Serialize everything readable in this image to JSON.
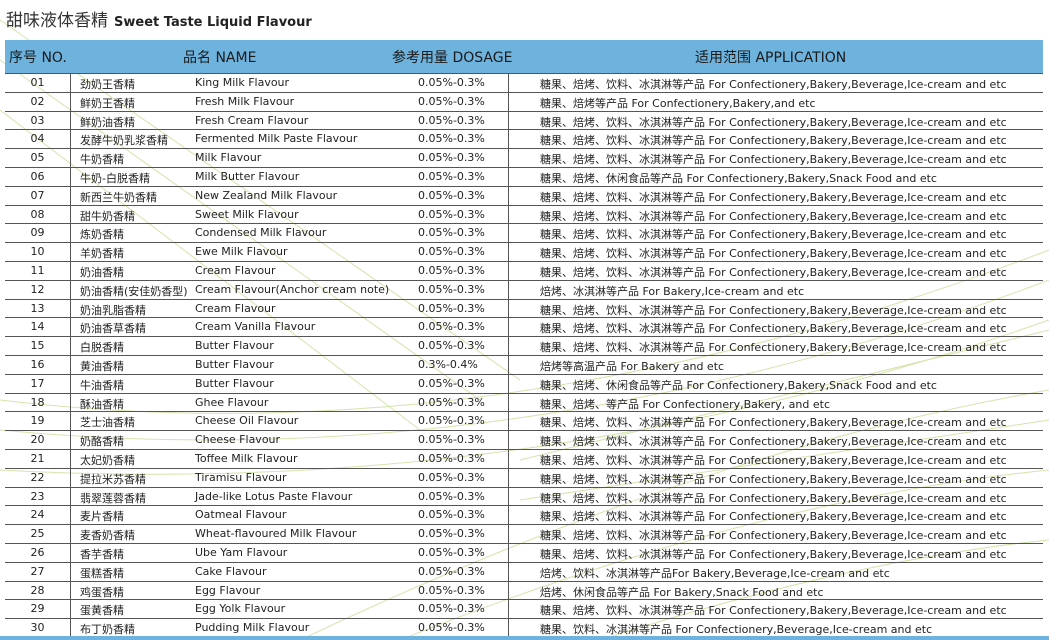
{
  "title": {
    "cn": "甜味液体香精",
    "en": "Sweet Taste Liquid Flavour"
  },
  "colors": {
    "header_bg": "#6db3de",
    "accent_lines": "#b9d77a"
  },
  "headers": {
    "no": "序号 NO.",
    "name": "品名 NAME",
    "dosage": "参考用量 DOSAGE",
    "application": "适用范围 APPLICATION"
  },
  "rows": [
    {
      "no": "01",
      "cn": "劲奶王香精",
      "en": "King Milk Flavour",
      "dosage": "0.05%-0.3%",
      "app": "糖果、焙烤、饮料、冰淇淋等产品  For Confectionery,Bakery,Beverage,Ice-cream and etc"
    },
    {
      "no": "02",
      "cn": "鲜奶王香精",
      "en": "Fresh Milk Flavour",
      "dosage": "0.05%-0.3%",
      "app": "糖果、焙烤等产品  For Confectionery,Bakery,and etc"
    },
    {
      "no": "03",
      "cn": "鲜奶油香精",
      "en": "Fresh Cream Flavour",
      "dosage": "0.05%-0.3%",
      "app": "糖果、焙烤、饮料、冰淇淋等产品  For Confectionery,Bakery,Beverage,Ice-cream and etc"
    },
    {
      "no": "04",
      "cn": "发酵牛奶乳浆香精",
      "en": "Fermented Milk Paste Flavour",
      "dosage": "0.05%-0.3%",
      "app": "糖果、焙烤、饮料、冰淇淋等产品  For Confectionery,Bakery,Beverage,Ice-cream and etc"
    },
    {
      "no": "05",
      "cn": "牛奶香精",
      "en": "Milk Flavour",
      "dosage": "0.05%-0.3%",
      "app": "糖果、焙烤、饮料、冰淇淋等产品  For Confectionery,Bakery,Beverage,Ice-cream and etc"
    },
    {
      "no": "06",
      "cn": "牛奶-白脱香精",
      "en": "Milk Butter Flavour",
      "dosage": "0.05%-0.3%",
      "app": "糖果、焙烤、休闲食品等产品  For Confectionery,Bakery,Snack Food and etc"
    },
    {
      "no": "07",
      "cn": "新西兰牛奶香精",
      "en": "New Zealand Milk Flavour",
      "dosage": "0.05%-0.3%",
      "app": "糖果、焙烤、饮料、冰淇淋等产品  For Confectionery,Bakery,Beverage,Ice-cream and etc"
    },
    {
      "no": "08",
      "cn": "甜牛奶香精",
      "en": "Sweet Milk Flavour",
      "dosage": "0.05%-0.3%",
      "app": "糖果、焙烤、饮料、冰淇淋等产品  For Confectionery,Bakery,Beverage,Ice-cream and etc"
    },
    {
      "no": "09",
      "cn": "炼奶香精",
      "en": "Condensed Milk Flavour",
      "dosage": "0.05%-0.3%",
      "app": "糖果、焙烤、饮料、冰淇淋等产品  For Confectionery,Bakery,Beverage,Ice-cream and etc"
    },
    {
      "no": "10",
      "cn": "羊奶香精",
      "en": "Ewe Milk Flavour",
      "dosage": "0.05%-0.3%",
      "app": "糖果、焙烤、饮料、冰淇淋等产品  For Confectionery,Bakery,Beverage,Ice-cream and etc"
    },
    {
      "no": "11",
      "cn": "奶油香精",
      "en": "Cream Flavour",
      "dosage": "0.05%-0.3%",
      "app": "糖果、焙烤、饮料、冰淇淋等产品  For Confectionery,Bakery,Beverage,Ice-cream and etc"
    },
    {
      "no": "12",
      "cn": "奶油香精(安佳奶香型)",
      "en": "Cream Flavour(Anchor cream note)",
      "dosage": "0.05%-0.3%",
      "app": "焙烤、冰淇淋等产品  For Bakery,Ice-cream and etc"
    },
    {
      "no": "13",
      "cn": "奶油乳脂香精",
      "en": "Cream Flavour",
      "dosage": "0.05%-0.3%",
      "app": "糖果、焙烤、饮料、冰淇淋等产品  For Confectionery,Bakery,Beverage,Ice-cream and etc"
    },
    {
      "no": "14",
      "cn": "奶油香草香精",
      "en": "Cream Vanilla Flavour",
      "dosage": "0.05%-0.3%",
      "app": "糖果、焙烤、饮料、冰淇淋等产品  For Confectionery,Bakery,Beverage,Ice-cream and etc"
    },
    {
      "no": "15",
      "cn": "白脱香精",
      "en": "Butter Flavour",
      "dosage": "0.05%-0.3%",
      "app": "糖果、焙烤、饮料、冰淇淋等产品  For Confectionery,Bakery,Beverage,Ice-cream and etc"
    },
    {
      "no": "16",
      "cn": "黄油香精",
      "en": "Butter Flavour",
      "dosage": "0.3%-0.4%",
      "app": "焙烤等高温产品  For Bakery and etc"
    },
    {
      "no": "17",
      "cn": "牛油香精",
      "en": "Butter Flavour",
      "dosage": "0.05%-0.3%",
      "app": "糖果、焙烤、休闲食品等产品  For Confectionery,Bakery,Snack Food and etc"
    },
    {
      "no": "18",
      "cn": "酥油香精",
      "en": "Ghee Flavour",
      "dosage": "0.05%-0.3%",
      "app": "糖果、焙烤、等产品  For Confectionery,Bakery, and etc"
    },
    {
      "no": "19",
      "cn": "芝士油香精",
      "en": "Cheese Oil Flavour",
      "dosage": "0.05%-0.3%",
      "app": "糖果、焙烤、饮料、冰淇淋等产品  For Confectionery,Bakery,Beverage,Ice-cream and etc"
    },
    {
      "no": "20",
      "cn": "奶酪香精",
      "en": "Cheese Flavour",
      "dosage": "0.05%-0.3%",
      "app": "糖果、焙烤、饮料、冰淇淋等产品  For Confectionery,Bakery,Beverage,Ice-cream and etc"
    },
    {
      "no": "21",
      "cn": "太妃奶香精",
      "en": "Toffee Milk Flavour",
      "dosage": "0.05%-0.3%",
      "app": "糖果、焙烤、饮料、冰淇淋等产品  For Confectionery,Bakery,Beverage,Ice-cream and etc"
    },
    {
      "no": "22",
      "cn": "提拉米苏香精",
      "en": "Tiramisu Flavour",
      "dosage": "0.05%-0.3%",
      "app": "糖果、焙烤、饮料、冰淇淋等产品  For Confectionery,Bakery,Beverage,Ice-cream and etc"
    },
    {
      "no": "23",
      "cn": "翡翠莲蓉香精",
      "en": "Jade-like Lotus Paste Flavour",
      "dosage": "0.05%-0.3%",
      "app": "糖果、焙烤、饮料、冰淇淋等产品  For Confectionery,Bakery,Beverage,Ice-cream and etc"
    },
    {
      "no": "24",
      "cn": "麦片香精",
      "en": "Oatmeal Flavour",
      "dosage": "0.05%-0.3%",
      "app": "糖果、焙烤、饮料、冰淇淋等产品  For Confectionery,Bakery,Beverage,Ice-cream and etc"
    },
    {
      "no": "25",
      "cn": "麦香奶香精",
      "en": "Wheat-flavoured Milk Flavour",
      "dosage": "0.05%-0.3%",
      "app": "糖果、焙烤、饮料、冰淇淋等产品  For Confectionery,Bakery,Beverage,Ice-cream and etc"
    },
    {
      "no": "26",
      "cn": "香芋香精",
      "en": "Ube Yam Flavour",
      "dosage": "0.05%-0.3%",
      "app": "糖果、焙烤、饮料、冰淇淋等产品  For Confectionery,Bakery,Beverage,Ice-cream and etc"
    },
    {
      "no": "27",
      "cn": "蛋糕香精",
      "en": "Cake Flavour",
      "dosage": "0.05%-0.3%",
      "app": "焙烤、饮料、冰淇淋等产品For Bakery,Beverage,Ice-cream and etc"
    },
    {
      "no": "28",
      "cn": "鸡蛋香精",
      "en": "Egg Flavour",
      "dosage": "0.05%-0.3%",
      "app": "焙烤、休闲食品等产品  For Bakery,Snack Food and etc"
    },
    {
      "no": "29",
      "cn": "蛋黄香精",
      "en": "Egg Yolk Flavour",
      "dosage": "0.05%-0.3%",
      "app": "糖果、焙烤、饮料、冰淇淋等产品  For Confectionery,Bakery,Beverage,Ice-cream and etc"
    },
    {
      "no": "30",
      "cn": "布丁奶香精",
      "en": "Pudding Milk Flavour",
      "dosage": "0.05%-0.3%",
      "app": "糖果、饮料、冰淇淋等产品  For Confectionery,Beverage,Ice-cream and etc"
    }
  ]
}
